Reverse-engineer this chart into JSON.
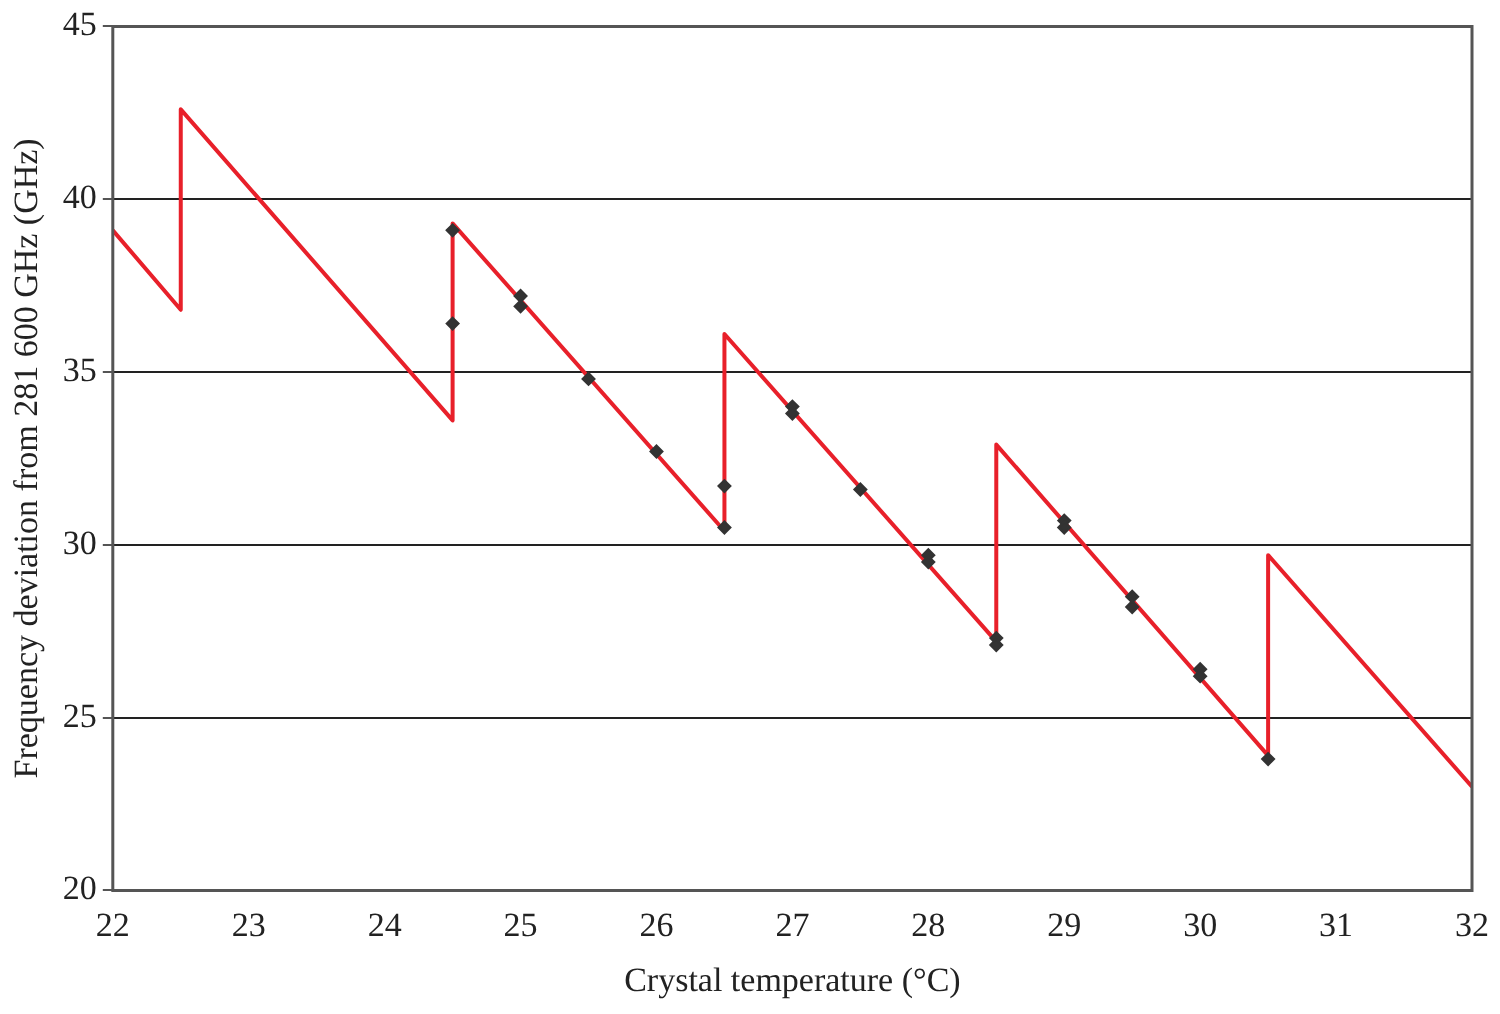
{
  "chart_data": {
    "type": "scatter",
    "xlabel": "Crystal temperature (°C)",
    "ylabel": "Frequency deviation from 281 600 GHz (GHz)",
    "xlim": [
      22,
      32
    ],
    "xticks": [
      22,
      23,
      24,
      25,
      26,
      27,
      28,
      29,
      30,
      31,
      32
    ],
    "ylim": [
      20,
      45
    ],
    "yticks": [
      20,
      25,
      30,
      35,
      40,
      45
    ],
    "grid": "y",
    "legend": false,
    "series": [
      {
        "type": "line",
        "color": "#e8202a",
        "marker": "none",
        "line_style": "solid",
        "x": [
          22,
          22.5,
          22.5,
          24.5,
          24.5,
          26.5,
          26.5,
          28.5,
          28.5,
          30.5,
          30.5,
          32
        ],
        "values": [
          39.1,
          36.8,
          42.6,
          33.6,
          39.3,
          30.4,
          36.1,
          27.2,
          32.9,
          23.9,
          29.7,
          23.0
        ]
      },
      {
        "type": "scatter",
        "color": "#333333",
        "marker": "diamond",
        "x": [
          24.5,
          24.5,
          25,
          25,
          25.5,
          26,
          26.5,
          26.5,
          27,
          27,
          27.5,
          28,
          28,
          28.5,
          28.5,
          29,
          29,
          29.5,
          29.5,
          30,
          30,
          30.5
        ],
        "values": [
          39.1,
          36.4,
          37.2,
          36.9,
          34.8,
          32.7,
          31.7,
          30.5,
          34.0,
          33.8,
          31.6,
          29.7,
          29.5,
          27.3,
          27.1,
          30.7,
          30.5,
          28.5,
          28.2,
          26.4,
          26.2,
          23.8
        ]
      }
    ]
  }
}
